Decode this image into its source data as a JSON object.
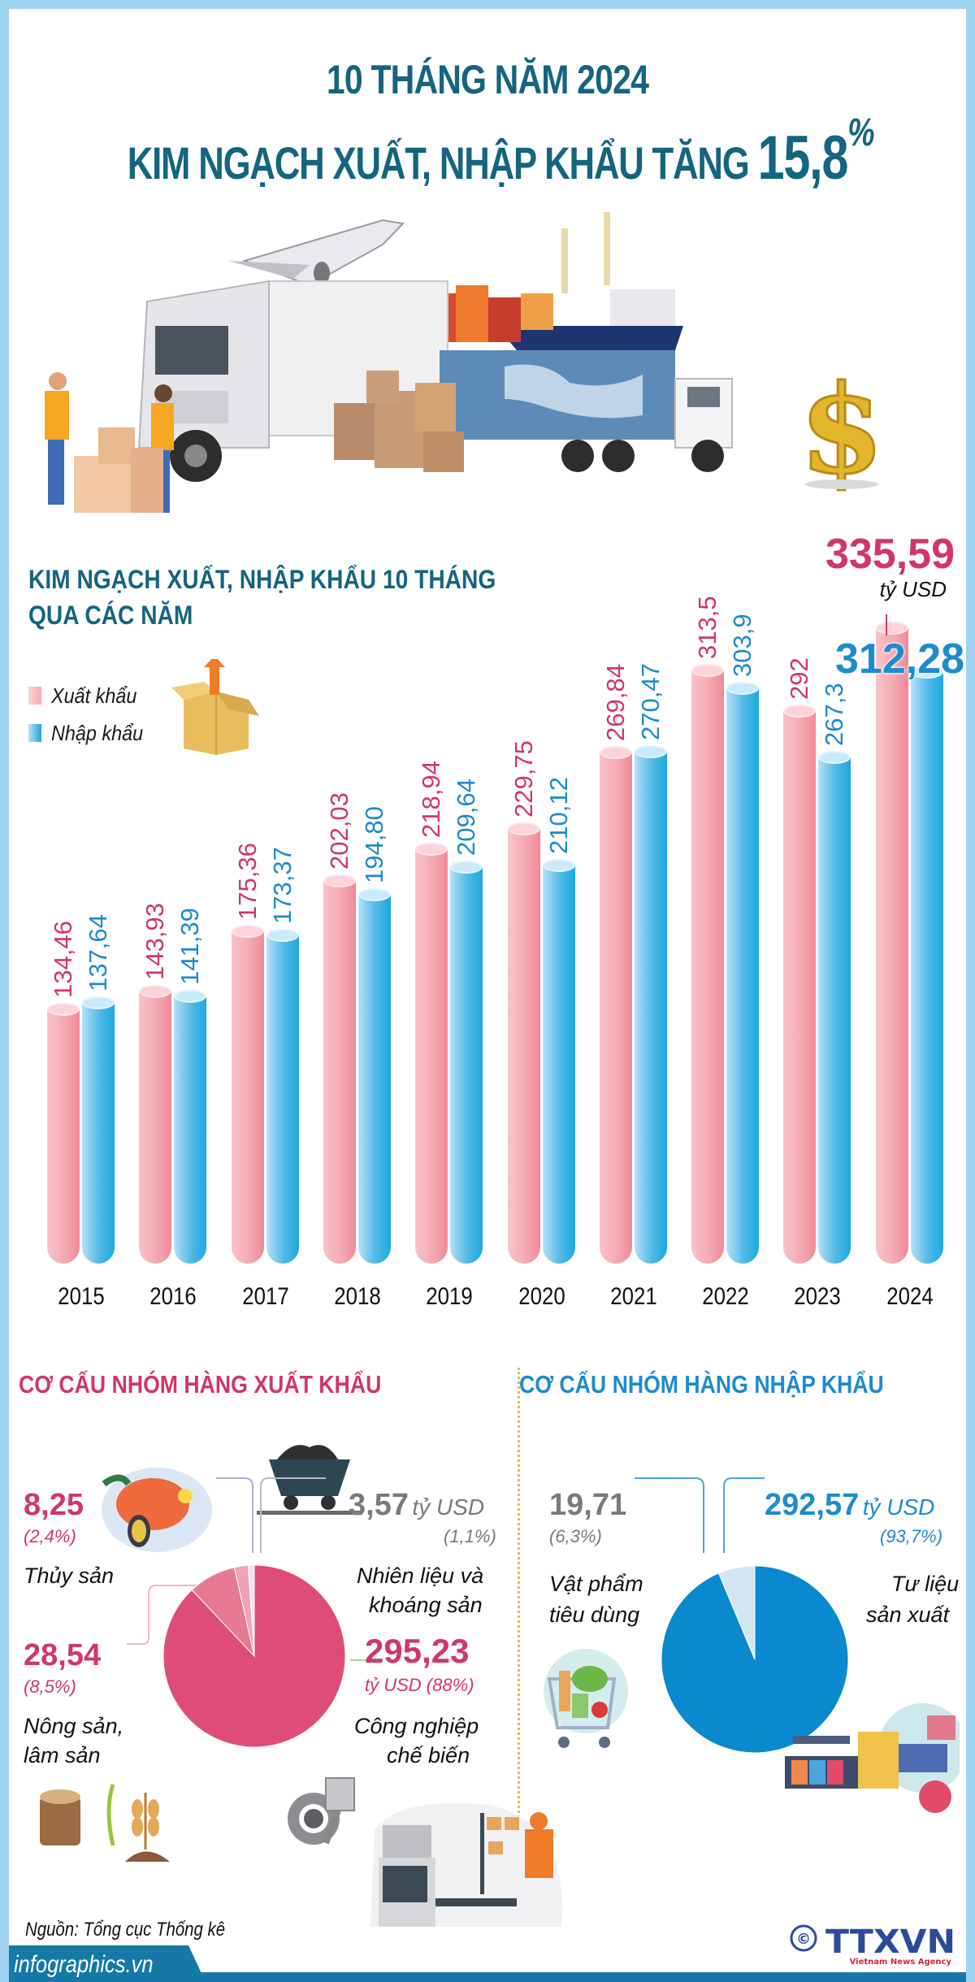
{
  "header": {
    "title_line1": "10 THÁNG NĂM 2024",
    "title_line2_prefix": "KIM NGẠCH XUẤT, NHẬP KHẨU TĂNG ",
    "title_line2_value": "15,8",
    "title_line2_unit": "%"
  },
  "hero": {
    "icons": [
      "truck-icon",
      "airplane-icon",
      "container-ship-icon",
      "container-truck-icon",
      "cardboard-boxes-icon",
      "worker-icon",
      "dollar-sign-icon"
    ]
  },
  "chart_section": {
    "heading_line1": "KIM NGẠCH XUẤT, NHẬP KHẨU 10 THÁNG",
    "heading_line2": "QUA CÁC NĂM",
    "legend": [
      {
        "label": "Xuất khẩu",
        "color": "#f4a9b2"
      },
      {
        "label": "Nhập khẩu",
        "color": "#1da8df"
      }
    ],
    "highlight_export_value": "335,59",
    "highlight_unit": "tỷ USD",
    "highlight_import_value": "312,28"
  },
  "chart_data": [
    {
      "type": "bar",
      "title": "KIM NGẠCH XUẤT, NHẬP KHẨU 10 THÁNG QUA CÁC NĂM",
      "xlabel": "",
      "ylabel": "tỷ USD",
      "categories": [
        "2015",
        "2016",
        "2017",
        "2018",
        "2019",
        "2020",
        "2021",
        "2022",
        "2023",
        "2024"
      ],
      "series": [
        {
          "name": "Xuất khẩu",
          "color": "#f4a9b2",
          "values": [
            134.46,
            143.93,
            175.36,
            202.03,
            218.94,
            229.75,
            269.84,
            313.5,
            292,
            335.59
          ],
          "labels": [
            "134,46",
            "143,93",
            "175,36",
            "202,03",
            "218,94",
            "229,75",
            "269,84",
            "313,5",
            "292",
            "335,59"
          ]
        },
        {
          "name": "Nhập khẩu",
          "color": "#1da8df",
          "values": [
            137.64,
            141.39,
            173.37,
            194.8,
            209.64,
            210.12,
            270.47,
            303.9,
            267.3,
            312.28
          ],
          "labels": [
            "137,64",
            "141,39",
            "173,37",
            "194,80",
            "209,64",
            "210,12",
            "270,47",
            "303,9",
            "267,3",
            "312,28"
          ]
        }
      ],
      "ylim": [
        0,
        350
      ],
      "grid": false,
      "legend_position": "top-left"
    },
    {
      "type": "pie",
      "title": "CƠ CẤU NHÓM HÀNG XUẤT KHẨU",
      "unit": "tỷ USD",
      "slices": [
        {
          "label": "Công nghiệp chế biến",
          "value": 295.23,
          "value_text": "295,23",
          "percent": 88,
          "percent_text": "88%",
          "color": "#de4d78"
        },
        {
          "label": "Nông sản, lâm sản",
          "value": 28.54,
          "value_text": "28,54",
          "percent": 8.5,
          "percent_text": "8,5%",
          "color": "#e77a93"
        },
        {
          "label": "Thủy sản",
          "value": 8.25,
          "value_text": "8,25",
          "percent": 2.4,
          "percent_text": "2,4%",
          "color": "#eea4b5"
        },
        {
          "label": "Nhiên liệu và khoáng sản",
          "value": 3.57,
          "value_text": "3,57",
          "percent": 1.1,
          "percent_text": "1,1%",
          "color": "#e6e6f2"
        }
      ]
    },
    {
      "type": "pie",
      "title": "CƠ CẤU NHÓM HÀNG NHẬP KHẨU",
      "unit": "tỷ USD",
      "slices": [
        {
          "label": "Tư liệu sản xuất",
          "value": 292.57,
          "value_text": "292,57",
          "percent": 93.7,
          "percent_text": "93,7%",
          "color": "#0a89cf"
        },
        {
          "label": "Vật phẩm tiêu dùng",
          "value": 19.71,
          "value_text": "19,71",
          "percent": 6.3,
          "percent_text": "6,3%",
          "color": "#d3e6f5"
        }
      ]
    }
  ],
  "export_structure": {
    "heading": "CƠ CẤU NHÓM HÀNG XUẤT KHẨU",
    "items": [
      {
        "value": "8,25",
        "percent": "(2,4%)",
        "label": "Thủy sản"
      },
      {
        "value": "3,57",
        "unit": "tỷ USD",
        "percent": "(1,1%)",
        "label_line1": "Nhiên liệu và",
        "label_line2": "khoáng sản"
      },
      {
        "value": "28,54",
        "percent": "(8,5%)",
        "label_line1": "Nông sản,",
        "label_line2": "lâm sản"
      },
      {
        "value": "295,23",
        "unit_percent": "tỷ USD (88%)",
        "label_line1": "Công nghiệp",
        "label_line2": "chế biến"
      }
    ]
  },
  "import_structure": {
    "heading": "CƠ CẤU NHÓM HÀNG NHẬP KHẨU",
    "items": [
      {
        "value": "19,71",
        "percent": "(6,3%)",
        "label_line1": "Vật phẩm",
        "label_line2": "tiêu dùng"
      },
      {
        "value": "292,57",
        "unit": "tỷ USD",
        "percent": "(93,7%)",
        "label_line1": "Tư liệu",
        "label_line2": "sản xuất"
      }
    ]
  },
  "footer": {
    "source": "Nguồn: Tổng cục Thống kê",
    "site": "infographics.vn",
    "logo_copyright": "©",
    "logo_text": "TTXVN",
    "logo_subtext": "Vietnam News Agency"
  }
}
